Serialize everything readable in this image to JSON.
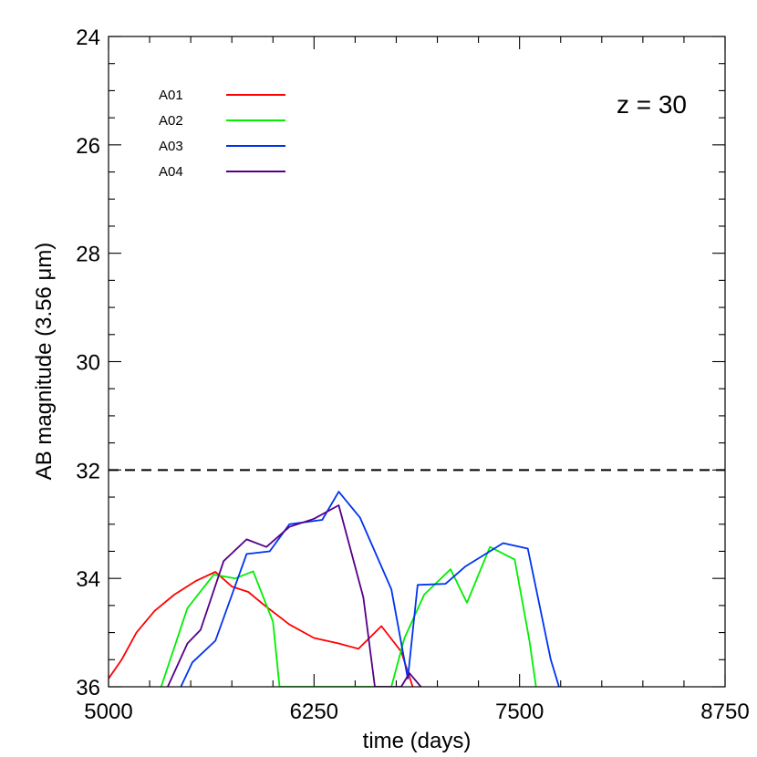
{
  "chart_data": {
    "type": "line",
    "title": "",
    "xlabel": "time (days)",
    "ylabel": "AB magnitude (3.56 μm)",
    "xlim": [
      5000,
      8750
    ],
    "ylim": [
      36,
      24
    ],
    "y_inverted": true,
    "x_ticks": [
      5000,
      6250,
      7500,
      8750
    ],
    "x_tick_labels": [
      "5000",
      "6250",
      "7500",
      "8750"
    ],
    "y_ticks": [
      24,
      26,
      28,
      30,
      32,
      34,
      36
    ],
    "y_tick_labels": [
      "24",
      "26",
      "28",
      "30",
      "32",
      "34",
      "36"
    ],
    "grid": false,
    "legend_position": "top-left",
    "annotation": "z = 30",
    "reference_line": {
      "y": 32,
      "style": "dashed",
      "color": "#000000"
    },
    "series": [
      {
        "name": "A01",
        "color": "#ff0000",
        "x": [
          5000,
          5080,
          5170,
          5280,
          5400,
          5530,
          5650,
          5750,
          5850,
          5950,
          6100,
          6250,
          6400,
          6520,
          6660,
          6780,
          6850
        ],
        "y": [
          35.85,
          35.5,
          35.0,
          34.6,
          34.3,
          34.05,
          33.88,
          34.15,
          34.25,
          34.5,
          34.85,
          35.1,
          35.2,
          35.3,
          34.88,
          35.35,
          36.0
        ]
      },
      {
        "name": "A02",
        "color": "#00ee00",
        "x": [
          5320,
          5480,
          5640,
          5770,
          5880,
          6000,
          6040,
          6720,
          6800,
          6920,
          7080,
          7180,
          7320,
          7470,
          7560,
          7600
        ],
        "y": [
          36.0,
          34.55,
          33.93,
          34.0,
          33.87,
          34.8,
          36.0,
          36.0,
          35.1,
          34.3,
          33.83,
          34.45,
          33.42,
          33.65,
          35.15,
          36.0
        ]
      },
      {
        "name": "A03",
        "color": "#0033ee",
        "x": [
          5440,
          5510,
          5650,
          5840,
          5980,
          6100,
          6300,
          6400,
          6530,
          6720,
          6820,
          6880,
          7050,
          7170,
          7400,
          7550,
          7690,
          7740
        ],
        "y": [
          36.0,
          35.55,
          35.15,
          33.55,
          33.5,
          33.0,
          32.92,
          32.4,
          32.88,
          34.2,
          35.85,
          34.12,
          34.1,
          33.78,
          33.35,
          33.45,
          35.5,
          36.0
        ]
      },
      {
        "name": "A04",
        "color": "#550088",
        "x": [
          5360,
          5480,
          5560,
          5700,
          5840,
          5960,
          6100,
          6250,
          6400,
          6550,
          6620,
          6780,
          6830,
          6900
        ],
        "y": [
          36.0,
          35.2,
          34.95,
          33.68,
          33.28,
          33.42,
          33.05,
          32.9,
          32.65,
          34.35,
          36.0,
          36.0,
          35.75,
          36.0
        ]
      }
    ]
  }
}
